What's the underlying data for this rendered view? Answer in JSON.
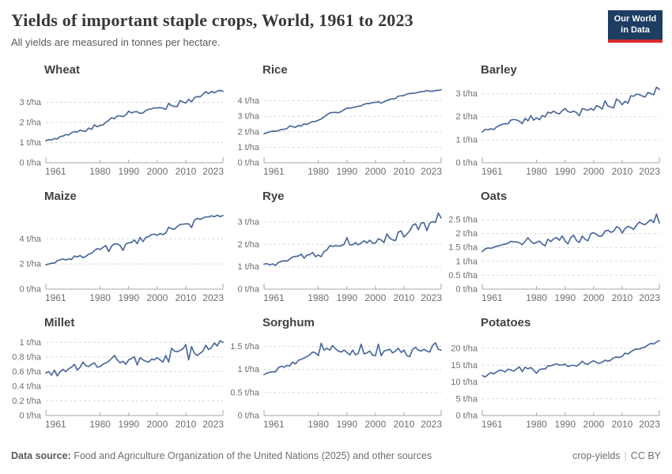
{
  "header": {
    "title": "Yields of important staple crops, World, 1961 to 2023",
    "subtitle": "All yields are measured in tonnes per hectare.",
    "logo": {
      "line1": "Our World",
      "line2": "in Data",
      "bg": "#1d3d63",
      "accent": "#d7282d"
    }
  },
  "footer": {
    "source_label": "Data source:",
    "source_text": " Food and Agriculture Organization of the United Nations (2025) and other sources",
    "slug": "crop-yields",
    "separator": "|",
    "license": "CC BY"
  },
  "chart_data": {
    "type": "line",
    "layout": "3x3-small-multiples",
    "unit_suffix": "t/ha",
    "line_color": "#4c6a9c",
    "grid_color": "#d9d9d9",
    "axis_color": "#a6a6a6",
    "x_range": [
      1961,
      2023
    ],
    "x_ticks": [
      1961,
      1980,
      1990,
      2000,
      2010,
      2023
    ],
    "x": [
      1961,
      1962,
      1963,
      1964,
      1965,
      1966,
      1967,
      1968,
      1969,
      1970,
      1971,
      1972,
      1973,
      1974,
      1975,
      1976,
      1977,
      1978,
      1979,
      1980,
      1981,
      1982,
      1983,
      1984,
      1985,
      1986,
      1987,
      1988,
      1989,
      1990,
      1991,
      1992,
      1993,
      1994,
      1995,
      1996,
      1997,
      1998,
      1999,
      2000,
      2001,
      2002,
      2003,
      2004,
      2005,
      2006,
      2007,
      2008,
      2009,
      2010,
      2011,
      2012,
      2013,
      2014,
      2015,
      2016,
      2017,
      2018,
      2019,
      2020,
      2021,
      2022,
      2023
    ],
    "panels": [
      {
        "title": "Wheat",
        "ylim": [
          0,
          4.0
        ],
        "y_ticks": [
          0,
          1,
          2,
          3
        ],
        "values": [
          1.09,
          1.15,
          1.13,
          1.2,
          1.18,
          1.3,
          1.32,
          1.4,
          1.38,
          1.49,
          1.55,
          1.52,
          1.62,
          1.57,
          1.57,
          1.72,
          1.65,
          1.88,
          1.79,
          1.86,
          1.88,
          2.01,
          2.1,
          2.24,
          2.18,
          2.32,
          2.32,
          2.29,
          2.38,
          2.56,
          2.47,
          2.53,
          2.53,
          2.45,
          2.47,
          2.6,
          2.65,
          2.68,
          2.72,
          2.72,
          2.74,
          2.7,
          2.65,
          2.95,
          2.83,
          2.8,
          2.79,
          3.09,
          3.01,
          2.96,
          3.15,
          3.02,
          3.23,
          3.29,
          3.27,
          3.4,
          3.53,
          3.43,
          3.54,
          3.47,
          3.56,
          3.59,
          3.55
        ]
      },
      {
        "title": "Rice",
        "ylim": [
          0,
          5.2
        ],
        "y_ticks": [
          0,
          1,
          2,
          3,
          4
        ],
        "values": [
          1.87,
          1.93,
          2.0,
          2.04,
          2.03,
          2.07,
          2.14,
          2.16,
          2.2,
          2.38,
          2.33,
          2.29,
          2.4,
          2.37,
          2.51,
          2.47,
          2.57,
          2.66,
          2.66,
          2.75,
          2.83,
          2.95,
          3.1,
          3.21,
          3.25,
          3.24,
          3.23,
          3.3,
          3.42,
          3.53,
          3.52,
          3.56,
          3.6,
          3.65,
          3.66,
          3.78,
          3.82,
          3.82,
          3.89,
          3.89,
          3.94,
          3.85,
          3.93,
          4.01,
          4.09,
          4.12,
          4.15,
          4.3,
          4.32,
          4.34,
          4.43,
          4.47,
          4.48,
          4.5,
          4.55,
          4.59,
          4.6,
          4.66,
          4.62,
          4.61,
          4.66,
          4.67,
          4.71
        ]
      },
      {
        "title": "Barley",
        "ylim": [
          0,
          3.5
        ],
        "y_ticks": [
          0,
          1,
          2,
          3
        ],
        "values": [
          1.33,
          1.45,
          1.43,
          1.48,
          1.44,
          1.55,
          1.62,
          1.67,
          1.7,
          1.69,
          1.85,
          1.88,
          1.86,
          1.8,
          1.7,
          1.93,
          1.82,
          2.05,
          1.85,
          1.95,
          1.87,
          2.05,
          1.99,
          2.2,
          2.15,
          2.24,
          2.16,
          2.12,
          2.26,
          2.35,
          2.22,
          2.19,
          2.24,
          2.18,
          2.05,
          2.35,
          2.32,
          2.28,
          2.36,
          2.28,
          2.48,
          2.43,
          2.33,
          2.69,
          2.46,
          2.42,
          2.38,
          2.77,
          2.68,
          2.52,
          2.67,
          2.58,
          2.91,
          2.89,
          2.98,
          2.96,
          2.9,
          2.85,
          3.05,
          3.0,
          2.95,
          3.28,
          3.18
        ]
      },
      {
        "title": "Maize",
        "ylim": [
          0,
          6.4
        ],
        "y_ticks": [
          0,
          2,
          4
        ],
        "values": [
          1.94,
          1.99,
          2.07,
          2.06,
          2.26,
          2.34,
          2.39,
          2.33,
          2.4,
          2.35,
          2.63,
          2.56,
          2.67,
          2.5,
          2.61,
          2.78,
          2.84,
          3.06,
          3.22,
          3.15,
          3.32,
          3.46,
          2.98,
          3.41,
          3.6,
          3.59,
          3.47,
          3.08,
          3.58,
          3.68,
          3.71,
          3.91,
          3.61,
          4.11,
          3.78,
          4.11,
          4.18,
          4.34,
          4.36,
          4.28,
          4.42,
          4.33,
          4.47,
          4.91,
          4.8,
          4.76,
          4.97,
          5.13,
          5.16,
          5.19,
          5.18,
          4.89,
          5.48,
          5.62,
          5.54,
          5.64,
          5.75,
          5.73,
          5.82,
          5.75,
          5.88,
          5.76,
          5.85
        ]
      },
      {
        "title": "Rye",
        "ylim": [
          0,
          3.6
        ],
        "y_ticks": [
          0,
          1,
          2,
          3
        ],
        "values": [
          1.12,
          1.14,
          1.08,
          1.13,
          1.06,
          1.19,
          1.24,
          1.27,
          1.25,
          1.34,
          1.44,
          1.46,
          1.48,
          1.56,
          1.38,
          1.52,
          1.54,
          1.64,
          1.45,
          1.52,
          1.45,
          1.68,
          1.75,
          1.95,
          1.91,
          1.94,
          1.92,
          1.94,
          2.0,
          2.3,
          1.98,
          1.98,
          2.08,
          1.98,
          2.05,
          2.16,
          2.06,
          2.19,
          2.05,
          2.06,
          2.25,
          2.2,
          2.08,
          2.47,
          2.28,
          2.2,
          2.17,
          2.55,
          2.6,
          2.33,
          2.46,
          2.6,
          2.85,
          2.92,
          2.66,
          2.95,
          2.97,
          2.62,
          2.95,
          3.02,
          2.98,
          3.4,
          3.18
        ]
      },
      {
        "title": "Oats",
        "ylim": [
          0,
          2.9
        ],
        "y_ticks": [
          0,
          0.5,
          1,
          1.5,
          2,
          2.5
        ],
        "values": [
          1.35,
          1.45,
          1.48,
          1.47,
          1.5,
          1.55,
          1.56,
          1.6,
          1.62,
          1.65,
          1.72,
          1.7,
          1.7,
          1.67,
          1.6,
          1.72,
          1.85,
          1.72,
          1.64,
          1.68,
          1.73,
          1.62,
          1.56,
          1.8,
          1.71,
          1.81,
          1.86,
          1.76,
          1.91,
          1.73,
          1.63,
          1.86,
          1.94,
          1.75,
          1.68,
          1.91,
          1.79,
          1.74,
          2.0,
          2.03,
          1.97,
          1.9,
          1.92,
          2.09,
          2.12,
          2.05,
          2.08,
          2.25,
          2.2,
          2.02,
          2.18,
          2.26,
          2.22,
          2.15,
          2.3,
          2.42,
          2.35,
          2.32,
          2.41,
          2.5,
          2.4,
          2.7,
          2.38
        ]
      },
      {
        "title": "Millet",
        "ylim": [
          0,
          1.1
        ],
        "y_ticks": [
          0,
          0.2,
          0.4,
          0.6,
          0.8,
          1
        ],
        "values": [
          0.58,
          0.6,
          0.55,
          0.62,
          0.54,
          0.6,
          0.63,
          0.6,
          0.64,
          0.66,
          0.7,
          0.62,
          0.66,
          0.73,
          0.68,
          0.67,
          0.7,
          0.72,
          0.66,
          0.67,
          0.7,
          0.72,
          0.74,
          0.78,
          0.82,
          0.76,
          0.72,
          0.74,
          0.7,
          0.76,
          0.78,
          0.8,
          0.69,
          0.79,
          0.76,
          0.74,
          0.73,
          0.77,
          0.76,
          0.79,
          0.76,
          0.73,
          0.82,
          0.73,
          0.92,
          0.88,
          0.87,
          0.89,
          0.91,
          0.97,
          0.76,
          0.94,
          0.85,
          0.82,
          0.85,
          0.88,
          0.96,
          0.9,
          0.93,
          0.99,
          0.95,
          1.02,
          1.0
        ]
      },
      {
        "title": "Sorghum",
        "ylim": [
          0,
          1.75
        ],
        "y_ticks": [
          0,
          0.5,
          1,
          1.5
        ],
        "values": [
          0.89,
          0.92,
          0.94,
          0.95,
          0.95,
          1.04,
          1.07,
          1.05,
          1.09,
          1.08,
          1.16,
          1.12,
          1.2,
          1.22,
          1.25,
          1.28,
          1.32,
          1.38,
          1.36,
          1.3,
          1.57,
          1.42,
          1.46,
          1.42,
          1.52,
          1.45,
          1.4,
          1.38,
          1.42,
          1.37,
          1.32,
          1.42,
          1.32,
          1.35,
          1.55,
          1.34,
          1.36,
          1.4,
          1.31,
          1.3,
          1.55,
          1.3,
          1.4,
          1.42,
          1.44,
          1.36,
          1.4,
          1.46,
          1.37,
          1.42,
          1.3,
          1.28,
          1.44,
          1.48,
          1.42,
          1.4,
          1.44,
          1.4,
          1.38,
          1.52,
          1.58,
          1.44,
          1.42
        ]
      },
      {
        "title": "Potatoes",
        "ylim": [
          0,
          24
        ],
        "y_ticks": [
          0,
          5,
          10,
          15,
          20
        ],
        "values": [
          11.9,
          11.5,
          12.2,
          12.8,
          12.4,
          13.0,
          13.5,
          13.4,
          13.0,
          13.8,
          13.6,
          13.2,
          13.9,
          14.5,
          13.1,
          14.4,
          13.9,
          14.3,
          13.5,
          12.6,
          13.7,
          13.9,
          13.8,
          14.8,
          14.8,
          15.1,
          15.4,
          15.0,
          15.1,
          15.3,
          14.6,
          14.9,
          15.0,
          14.7,
          15.3,
          16.2,
          15.4,
          15.3,
          15.9,
          16.3,
          15.8,
          15.5,
          15.9,
          16.5,
          16.2,
          16.5,
          17.2,
          17.4,
          17.3,
          17.6,
          18.6,
          18.3,
          19.0,
          19.5,
          19.8,
          19.8,
          20.2,
          20.4,
          21.0,
          21.5,
          21.3,
          21.9,
          22.3
        ]
      }
    ]
  }
}
